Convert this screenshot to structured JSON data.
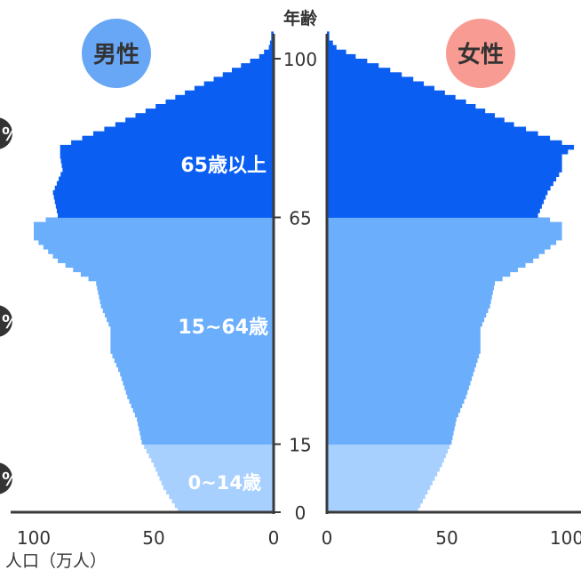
{
  "chart_data": {
    "type": "bar",
    "title": "",
    "ylabel": "年齢",
    "xlabel": "人口（万人）",
    "ylim": [
      0,
      105
    ],
    "xlim": [
      0,
      100
    ],
    "x_ticks": [
      "0",
      "50",
      "100"
    ],
    "y_ticks": [
      "0",
      "15",
      "65",
      "100"
    ],
    "male_label": "男性",
    "female_label": "女性",
    "age_groups": [
      {
        "name": "0~14歳",
        "from": 0,
        "to": 14,
        "color_male": "#a8d0ff",
        "color_female": "#a8d0ff"
      },
      {
        "name": "15~64歳",
        "from": 15,
        "to": 64,
        "color_male": "#6aaefc",
        "color_female": "#6aaefc"
      },
      {
        "name": "65歳以上",
        "from": 65,
        "to": 105,
        "color_male": "#0a5ef2",
        "color_female": "#0a5ef2"
      }
    ],
    "colors": {
      "male_badge": "#68a6f6",
      "female_badge": "#f89c93",
      "axis": "#3a3a3a"
    },
    "ages": [
      0,
      5,
      10,
      15,
      20,
      25,
      30,
      35,
      40,
      45,
      50,
      55,
      60,
      63,
      65,
      70,
      75,
      78,
      80,
      85,
      90,
      95,
      100,
      102,
      104
    ],
    "series": [
      {
        "name": "男性",
        "values": [
          40,
          46,
          50,
          55,
          57,
          61,
          64,
          68,
          68,
          72,
          74,
          90,
          100,
          100,
          90,
          92,
          88,
          89,
          89,
          66,
          45,
          25,
          6,
          2,
          1
        ]
      },
      {
        "name": "女性",
        "values": [
          38,
          43,
          48,
          52,
          54,
          58,
          61,
          64,
          64,
          68,
          70,
          86,
          98,
          98,
          88,
          92,
          98,
          98,
          103,
          78,
          58,
          36,
          12,
          4,
          1
        ]
      }
    ]
  },
  "side_markers": [
    "%",
    "%",
    "%"
  ]
}
